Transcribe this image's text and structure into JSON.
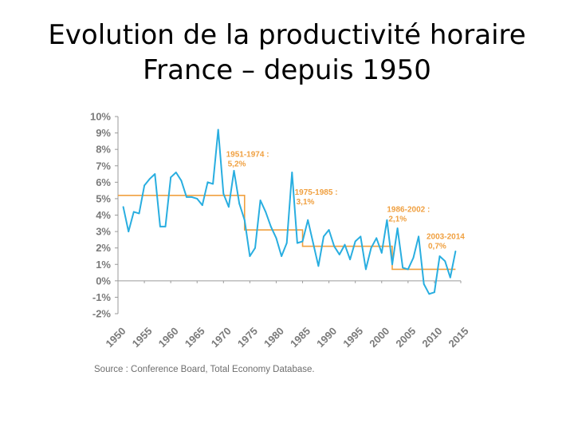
{
  "slide": {
    "title_line1": "Evolution de la productivité horaire",
    "title_line2": "France – depuis 1950"
  },
  "source": "Source : Conference Board, Total Economy Database.",
  "colors": {
    "series": "#29aee0",
    "average": "#f0a040",
    "annotation": "#f0a040",
    "axis_text": "#7a7a7a"
  },
  "chart_data": {
    "type": "line",
    "title": "",
    "xlabel": "",
    "ylabel": "",
    "ylim": [
      -2,
      10
    ],
    "xlim": [
      1950,
      2015
    ],
    "yticks": [
      "10%",
      "9%",
      "8%",
      "7%",
      "6%",
      "5%",
      "4%",
      "3%",
      "2%",
      "1%",
      "0%",
      "-1%",
      "-2%"
    ],
    "ytick_values": [
      10,
      9,
      8,
      7,
      6,
      5,
      4,
      3,
      2,
      1,
      0,
      -1,
      -2
    ],
    "xticks": [
      "1950",
      "1955",
      "1960",
      "1965",
      "1970",
      "1975",
      "1980",
      "1985",
      "1990",
      "1995",
      "2000",
      "2005",
      "2010",
      "2015"
    ],
    "xtick_values": [
      1950,
      1955,
      1960,
      1965,
      1970,
      1975,
      1980,
      1985,
      1990,
      1995,
      2000,
      2005,
      2010,
      2015
    ],
    "grid": false,
    "series": [
      {
        "x": [
          1951,
          1952,
          1953,
          1954,
          1955,
          1956,
          1957,
          1958,
          1959,
          1960,
          1961,
          1962,
          1963,
          1964,
          1965,
          1966,
          1967,
          1968,
          1969,
          1970,
          1971,
          1972,
          1973,
          1974,
          1975,
          1976,
          1977,
          1978,
          1979,
          1980,
          1981,
          1982,
          1983,
          1984,
          1985,
          1986,
          1987,
          1988,
          1989,
          1990,
          1991,
          1992,
          1993,
          1994,
          1995,
          1996,
          1997,
          1998,
          1999,
          2000,
          2001,
          2002,
          2003,
          2004,
          2005,
          2006,
          2007,
          2008,
          2009,
          2010,
          2011,
          2012,
          2013,
          2014
        ],
        "values": [
          4.5,
          3.0,
          4.2,
          4.1,
          5.8,
          6.2,
          6.5,
          3.3,
          3.3,
          6.3,
          6.6,
          6.1,
          5.1,
          5.1,
          5.0,
          4.6,
          6.0,
          5.9,
          9.2,
          5.3,
          4.5,
          6.7,
          4.7,
          3.7,
          1.5,
          2.0,
          4.9,
          4.2,
          3.3,
          2.6,
          1.5,
          2.3,
          6.6,
          2.3,
          2.4,
          3.7,
          2.3,
          0.9,
          2.7,
          3.1,
          2.1,
          1.6,
          2.2,
          1.3,
          2.4,
          2.7,
          0.7,
          2.0,
          2.6,
          1.7,
          3.7,
          1.0,
          3.2,
          0.8,
          0.7,
          1.4,
          2.7,
          -0.2,
          -0.8,
          -0.7,
          1.5,
          1.2,
          0.2,
          1.8
        ]
      },
      {
        "kind": "period-average",
        "segments": [
          {
            "from": 1950,
            "to": 1974,
            "value": 5.2
          },
          {
            "from": 1974,
            "to": 1985,
            "value": 3.1
          },
          {
            "from": 1985,
            "to": 2002,
            "value": 2.1
          },
          {
            "from": 2002,
            "to": 2014,
            "value": 0.7
          }
        ]
      }
    ],
    "annotations": [
      {
        "line1": "1951-1974 :",
        "line2": "5,2%",
        "year": 1970.5,
        "value": 7.55
      },
      {
        "line1": "1975-1985 :",
        "line2": "3,1%",
        "year": 1983.5,
        "value": 5.25
      },
      {
        "line1": "1986-2002 :",
        "line2": "2,1%",
        "year": 2001,
        "value": 4.2
      },
      {
        "line1": "2003-2014",
        "line2": "0,7%",
        "year": 2008.5,
        "value": 2.55
      }
    ]
  }
}
